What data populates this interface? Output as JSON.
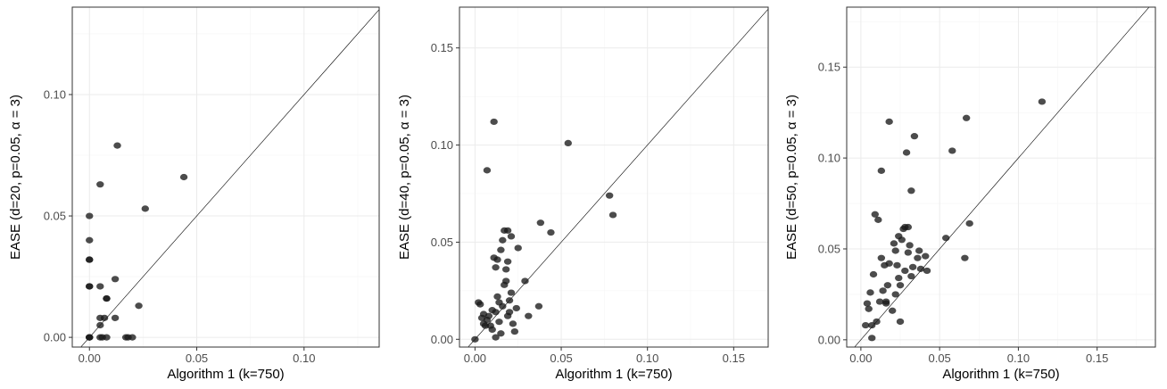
{
  "chart_data": [
    {
      "type": "scatter",
      "xlabel": "Algorithm 1 (k=750)",
      "ylabel": "EASE (d=20, p=0.05, α = 3)",
      "xlim": [
        -0.008,
        0.135
      ],
      "ylim": [
        -0.004,
        0.136
      ],
      "xticks": [
        0.0,
        0.05,
        0.1
      ],
      "xtick_labels": [
        "0.00",
        "0.05",
        "0.10"
      ],
      "yticks": [
        0.0,
        0.05,
        0.1
      ],
      "ytick_labels": [
        "0.00",
        "0.05",
        "0.10"
      ],
      "reference_line": "y = x",
      "grid": true,
      "point_color": "#1a1a1a",
      "points": [
        [
          0.0,
          0.0
        ],
        [
          0.0,
          0.0
        ],
        [
          0.0,
          0.0
        ],
        [
          0.0,
          0.021
        ],
        [
          0.0,
          0.021
        ],
        [
          0.0,
          0.032
        ],
        [
          0.0,
          0.032
        ],
        [
          0.0,
          0.04
        ],
        [
          0.0,
          0.05
        ],
        [
          0.005,
          0.0
        ],
        [
          0.005,
          0.005
        ],
        [
          0.005,
          0.008
        ],
        [
          0.005,
          0.021
        ],
        [
          0.005,
          0.063
        ],
        [
          0.006,
          0.0
        ],
        [
          0.007,
          0.008
        ],
        [
          0.008,
          0.016
        ],
        [
          0.008,
          0.016
        ],
        [
          0.008,
          0.0
        ],
        [
          0.012,
          0.008
        ],
        [
          0.012,
          0.024
        ],
        [
          0.013,
          0.079
        ],
        [
          0.017,
          0.0
        ],
        [
          0.018,
          0.0
        ],
        [
          0.02,
          0.0
        ],
        [
          0.023,
          0.013
        ],
        [
          0.026,
          0.053
        ],
        [
          0.044,
          0.066
        ]
      ]
    },
    {
      "type": "scatter",
      "xlabel": "Algorithm 1 (k=750)",
      "ylabel": "EASE (d=40, p=0.05, α = 3)",
      "xlim": [
        -0.009,
        0.17
      ],
      "ylim": [
        -0.004,
        0.171
      ],
      "xticks": [
        0.0,
        0.05,
        0.1,
        0.15
      ],
      "xtick_labels": [
        "0.00",
        "0.05",
        "0.10",
        "0.15"
      ],
      "yticks": [
        0.0,
        0.05,
        0.1,
        0.15
      ],
      "ytick_labels": [
        "0.00",
        "0.05",
        "0.10",
        "0.15"
      ],
      "reference_line": "y = x",
      "grid": true,
      "point_color": "#1a1a1a",
      "points": [
        [
          0.0,
          0.0
        ],
        [
          0.002,
          0.019
        ],
        [
          0.003,
          0.018
        ],
        [
          0.004,
          0.011
        ],
        [
          0.005,
          0.008
        ],
        [
          0.005,
          0.013
        ],
        [
          0.006,
          0.007
        ],
        [
          0.007,
          0.01
        ],
        [
          0.007,
          0.087
        ],
        [
          0.008,
          0.012
        ],
        [
          0.009,
          0.007
        ],
        [
          0.01,
          0.005
        ],
        [
          0.01,
          0.015
        ],
        [
          0.011,
          0.112
        ],
        [
          0.011,
          0.042
        ],
        [
          0.012,
          0.001
        ],
        [
          0.012,
          0.014
        ],
        [
          0.012,
          0.037
        ],
        [
          0.013,
          0.041
        ],
        [
          0.013,
          0.022
        ],
        [
          0.014,
          0.009
        ],
        [
          0.014,
          0.019
        ],
        [
          0.015,
          0.003
        ],
        [
          0.015,
          0.046
        ],
        [
          0.016,
          0.051
        ],
        [
          0.016,
          0.017
        ],
        [
          0.017,
          0.056
        ],
        [
          0.017,
          0.028
        ],
        [
          0.018,
          0.03
        ],
        [
          0.018,
          0.036
        ],
        [
          0.019,
          0.012
        ],
        [
          0.019,
          0.056
        ],
        [
          0.019,
          0.04
        ],
        [
          0.02,
          0.02
        ],
        [
          0.02,
          0.014
        ],
        [
          0.021,
          0.024
        ],
        [
          0.021,
          0.053
        ],
        [
          0.022,
          0.008
        ],
        [
          0.023,
          0.004
        ],
        [
          0.024,
          0.016
        ],
        [
          0.025,
          0.047
        ],
        [
          0.029,
          0.03
        ],
        [
          0.031,
          0.012
        ],
        [
          0.037,
          0.017
        ],
        [
          0.038,
          0.06
        ],
        [
          0.044,
          0.055
        ],
        [
          0.054,
          0.101
        ],
        [
          0.078,
          0.074
        ],
        [
          0.08,
          0.064
        ]
      ]
    },
    {
      "type": "scatter",
      "xlabel": "Algorithm 1 (k=750)",
      "ylabel": "EASE (d=50, p=0.05, α = 3)",
      "xlim": [
        -0.009,
        0.187
      ],
      "ylim": [
        -0.004,
        0.183
      ],
      "xticks": [
        0.0,
        0.05,
        0.1,
        0.15
      ],
      "xtick_labels": [
        "0.00",
        "0.05",
        "0.10",
        "0.15"
      ],
      "yticks": [
        0.0,
        0.05,
        0.1,
        0.15
      ],
      "ytick_labels": [
        "0.00",
        "0.05",
        "0.10",
        "0.15"
      ],
      "reference_line": "y = x",
      "grid": true,
      "point_color": "#1a1a1a",
      "points": [
        [
          0.003,
          0.008
        ],
        [
          0.004,
          0.02
        ],
        [
          0.005,
          0.017
        ],
        [
          0.006,
          0.026
        ],
        [
          0.007,
          0.001
        ],
        [
          0.007,
          0.008
        ],
        [
          0.008,
          0.036
        ],
        [
          0.009,
          0.069
        ],
        [
          0.01,
          0.01
        ],
        [
          0.011,
          0.066
        ],
        [
          0.012,
          0.021
        ],
        [
          0.013,
          0.093
        ],
        [
          0.013,
          0.045
        ],
        [
          0.014,
          0.027
        ],
        [
          0.015,
          0.041
        ],
        [
          0.016,
          0.021
        ],
        [
          0.016,
          0.02
        ],
        [
          0.017,
          0.03
        ],
        [
          0.018,
          0.042
        ],
        [
          0.018,
          0.12
        ],
        [
          0.02,
          0.016
        ],
        [
          0.021,
          0.053
        ],
        [
          0.022,
          0.049
        ],
        [
          0.022,
          0.025
        ],
        [
          0.023,
          0.041
        ],
        [
          0.024,
          0.034
        ],
        [
          0.024,
          0.057
        ],
        [
          0.025,
          0.01
        ],
        [
          0.025,
          0.03
        ],
        [
          0.026,
          0.055
        ],
        [
          0.027,
          0.061
        ],
        [
          0.028,
          0.038
        ],
        [
          0.028,
          0.062
        ],
        [
          0.029,
          0.103
        ],
        [
          0.03,
          0.062
        ],
        [
          0.03,
          0.048
        ],
        [
          0.031,
          0.052
        ],
        [
          0.032,
          0.082
        ],
        [
          0.032,
          0.035
        ],
        [
          0.033,
          0.04
        ],
        [
          0.034,
          0.112
        ],
        [
          0.036,
          0.045
        ],
        [
          0.037,
          0.049
        ],
        [
          0.038,
          0.039
        ],
        [
          0.041,
          0.046
        ],
        [
          0.042,
          0.038
        ],
        [
          0.054,
          0.056
        ],
        [
          0.058,
          0.104
        ],
        [
          0.066,
          0.045
        ],
        [
          0.067,
          0.122
        ],
        [
          0.069,
          0.064
        ],
        [
          0.115,
          0.131
        ]
      ]
    }
  ]
}
